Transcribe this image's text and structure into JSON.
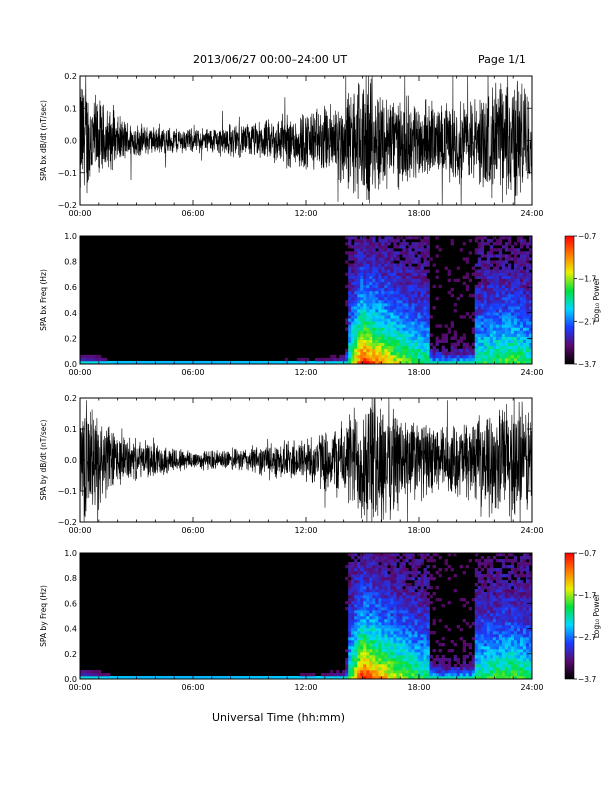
{
  "header": {
    "title": "2013/06/27  00:00–24:00 UT",
    "page": "Page 1/1"
  },
  "footer": {
    "xlabel": "Universal Time (hh:mm)"
  },
  "colors": {
    "colormap": [
      "#000000",
      "#5a0a6e",
      "#1a3cff",
      "#00d8ff",
      "#00e040",
      "#e8f000",
      "#ff7800",
      "#ff0000"
    ]
  },
  "chart_data": [
    {
      "type": "line",
      "title": "",
      "ylabel": "SPA bx dB/dt (nT/sec)",
      "xlabel": "",
      "xlim": [
        0,
        24
      ],
      "ylim": [
        -0.2,
        0.2
      ],
      "yticks": [
        "0.2",
        "0.1",
        "0.0",
        "−0.1",
        "−0.2"
      ],
      "xticks": [
        "00:00",
        "06:00",
        "12:00",
        "18:00",
        "24:00"
      ],
      "grid": false,
      "series": [
        {
          "x": [
            0,
            1,
            2,
            3,
            4,
            5,
            6,
            7,
            8,
            9,
            10,
            11,
            12,
            13,
            14,
            15,
            16,
            17,
            18,
            19,
            20,
            21,
            22,
            23,
            24
          ],
          "amplitude": [
            0.2,
            0.12,
            0.07,
            0.05,
            0.04,
            0.04,
            0.035,
            0.04,
            0.05,
            0.05,
            0.06,
            0.08,
            0.09,
            0.1,
            0.13,
            0.2,
            0.15,
            0.13,
            0.12,
            0.1,
            0.12,
            0.13,
            0.16,
            0.2,
            0.15
          ]
        }
      ]
    },
    {
      "type": "heatmap",
      "title": "",
      "ylabel": "SPA bx Freq (Hz)",
      "xlim": [
        0,
        24
      ],
      "ylim": [
        0.0,
        1.0
      ],
      "yticks": [
        "1.0",
        "0.8",
        "0.6",
        "0.4",
        "0.2",
        "0.0"
      ],
      "xticks": [
        "00:00",
        "06:00",
        "12:00",
        "18:00",
        "24:00"
      ],
      "colorbar": {
        "label": "Log₁₀ Power",
        "range": [
          -3.7,
          -0.7
        ],
        "ticks": [
          "−0.7",
          "−1.7",
          "−2.7",
          "−3.7"
        ]
      },
      "grid": false
    },
    {
      "type": "line",
      "title": "",
      "ylabel": "SPA by dB/dt (nT/sec)",
      "xlabel": "",
      "xlim": [
        0,
        24
      ],
      "ylim": [
        -0.2,
        0.2
      ],
      "yticks": [
        "0.2",
        "0.1",
        "0.0",
        "−0.1",
        "−0.2"
      ],
      "xticks": [
        "00:00",
        "06:00",
        "12:00",
        "18:00",
        "24:00"
      ],
      "grid": false,
      "series": [
        {
          "x": [
            0,
            1,
            2,
            3,
            4,
            5,
            6,
            7,
            8,
            9,
            10,
            11,
            12,
            13,
            14,
            15,
            16,
            17,
            18,
            19,
            20,
            21,
            22,
            23,
            24
          ],
          "amplitude": [
            0.2,
            0.14,
            0.08,
            0.06,
            0.05,
            0.04,
            0.03,
            0.03,
            0.03,
            0.04,
            0.05,
            0.06,
            0.07,
            0.09,
            0.12,
            0.2,
            0.2,
            0.15,
            0.12,
            0.1,
            0.11,
            0.12,
            0.15,
            0.2,
            0.15
          ]
        }
      ]
    },
    {
      "type": "heatmap",
      "title": "",
      "ylabel": "SPA by Freq (Hz)",
      "xlim": [
        0,
        24
      ],
      "ylim": [
        0.0,
        1.0
      ],
      "yticks": [
        "1.0",
        "0.8",
        "0.6",
        "0.4",
        "0.2",
        "0.0"
      ],
      "xticks": [
        "00:00",
        "06:00",
        "12:00",
        "18:00",
        "24:00"
      ],
      "colorbar": {
        "label": "Log₁₀ Power",
        "range": [
          -3.7,
          -0.7
        ],
        "ticks": [
          "−0.7",
          "−1.7",
          "−2.7",
          "−3.7"
        ]
      },
      "grid": false
    }
  ]
}
